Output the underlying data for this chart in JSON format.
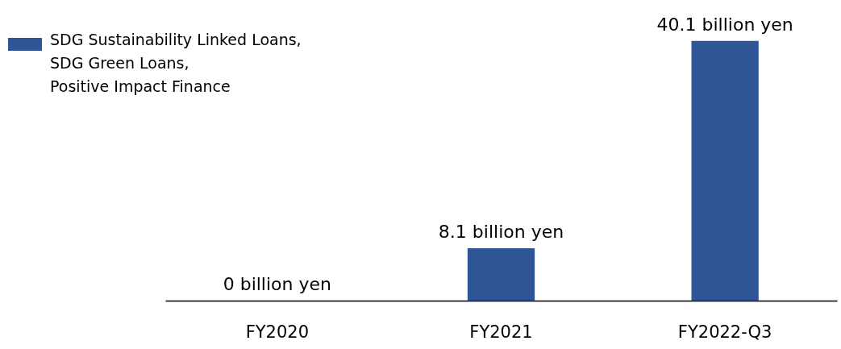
{
  "chart_data": {
    "type": "bar",
    "categories": [
      "FY2020",
      "FY2021",
      "FY2022-Q3"
    ],
    "series": [
      {
        "name": "SDG Sustainability Linked Loans,\nSDG Green Loans,\nPositive Impact Finance",
        "color": "#2f5597",
        "values": [
          0,
          8.1,
          40.1
        ],
        "value_labels": [
          "0 billion yen",
          "8.1 billion yen",
          "40.1 billion yen"
        ]
      }
    ],
    "legend": "top left",
    "grid": false
  }
}
